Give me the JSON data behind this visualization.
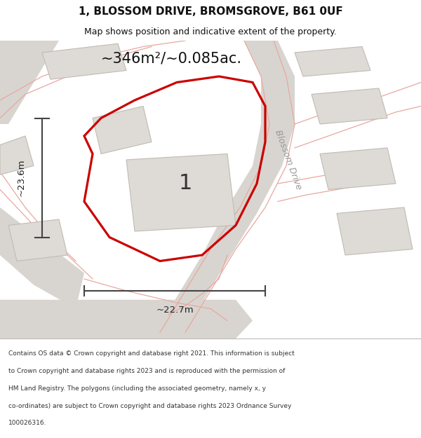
{
  "title": "1, BLOSSOM DRIVE, BROMSGROVE, B61 0UF",
  "subtitle": "Map shows position and indicative extent of the property.",
  "area_label": "~346m²/~0.085ac.",
  "width_label": "~22.7m",
  "height_label": "~23.6m",
  "plot_number": "1",
  "road_label": "Blossom Drive",
  "footer_lines": [
    "Contains OS data © Crown copyright and database right 2021. This information is subject",
    "to Crown copyright and database rights 2023 and is reproduced with the permission of",
    "HM Land Registry. The polygons (including the associated geometry, namely x, y",
    "co-ordinates) are subject to Crown copyright and database rights 2023 Ordnance Survey",
    "100026316."
  ],
  "map_bg": "#f2f0ed",
  "road_color": "#d8d5d0",
  "building_fill": "#dedad5",
  "building_stroke": "#c0bbb4",
  "plot_stroke": "#cc0000",
  "road_line_color": "#e8a8a0",
  "dim_color": "#444444",
  "title_color": "#111111"
}
